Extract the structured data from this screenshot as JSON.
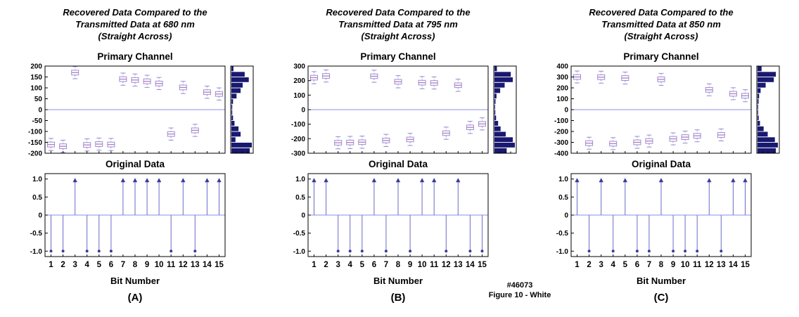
{
  "footnote": "#46073\nFigure 10 - White",
  "colors": {
    "box": "#9a8fd0",
    "median": "#b878c8",
    "zero_line": "#8890e8",
    "stem": "#6a6ac8",
    "marker": "#3a3a9a",
    "hist": "#191970",
    "axis": "#000000"
  },
  "chart_data": [
    {
      "label": "(A)",
      "title": "Recovered Data Compared to the\nTransmitted Data at 680 nm\n(Straight Across)",
      "boxplot": {
        "type": "box",
        "title": "Primary Channel",
        "ylim": [
          -200,
          200
        ],
        "yticks": [
          200,
          150,
          100,
          50,
          0,
          -50,
          -100,
          -150,
          -200
        ],
        "categories": [
          1,
          2,
          3,
          4,
          5,
          6,
          7,
          8,
          9,
          10,
          11,
          12,
          13,
          14,
          15
        ],
        "medians": [
          -160,
          -168,
          170,
          -162,
          -158,
          -160,
          140,
          136,
          130,
          120,
          -112,
          102,
          -95,
          80,
          72
        ],
        "box_half": 11,
        "whisker": 28
      },
      "histogram": {
        "type": "histogram",
        "orientation": "horizontal",
        "bins_top_to_bottom": [
          0.1,
          0.65,
          0.85,
          0.55,
          0.45,
          0.25,
          0.08,
          0.04,
          0.04,
          0.08,
          0.15,
          0.35,
          0.45,
          0.2,
          1.0,
          0.9
        ]
      },
      "stem": {
        "type": "stem",
        "title": "Original Data",
        "ylim": [
          -1.15,
          1.15
        ],
        "yticks": [
          "1.0",
          "0.5",
          "0",
          "-0.5",
          "-1.0"
        ],
        "x": [
          1,
          2,
          3,
          4,
          5,
          6,
          7,
          8,
          9,
          10,
          11,
          12,
          13,
          14,
          15
        ],
        "values": [
          -1,
          -1,
          1,
          -1,
          -1,
          -1,
          1,
          1,
          1,
          1,
          -1,
          1,
          -1,
          1,
          1
        ],
        "xlabel": "Bit Number"
      }
    },
    {
      "label": "(B)",
      "title": "Recovered Data Compared to the\nTransmitted Data at 795 nm\n(Straight Across)",
      "boxplot": {
        "type": "box",
        "title": "Primary Channel",
        "ylim": [
          -300,
          300
        ],
        "yticks": [
          300,
          200,
          100,
          0,
          -100,
          -200,
          -300
        ],
        "categories": [
          1,
          2,
          3,
          4,
          5,
          6,
          7,
          8,
          9,
          10,
          11,
          12,
          13,
          14,
          15
        ],
        "medians": [
          220,
          232,
          -228,
          -226,
          -224,
          230,
          -212,
          192,
          -205,
          186,
          184,
          -162,
          168,
          -122,
          -98
        ],
        "box_half": 16,
        "whisker": 42
      },
      "histogram": {
        "type": "histogram",
        "orientation": "horizontal",
        "bins_top_to_bottom": [
          0.12,
          0.8,
          0.9,
          0.5,
          0.28,
          0.1,
          0.05,
          0.03,
          0.04,
          0.08,
          0.18,
          0.3,
          0.55,
          0.9,
          1.0,
          0.6
        ]
      },
      "stem": {
        "type": "stem",
        "title": "Original Data",
        "ylim": [
          -1.15,
          1.15
        ],
        "yticks": [
          "1.0",
          "0.5",
          "0",
          "-0.5",
          "-1.0"
        ],
        "x": [
          1,
          2,
          3,
          4,
          5,
          6,
          7,
          8,
          9,
          10,
          11,
          12,
          13,
          14,
          15
        ],
        "values": [
          1,
          1,
          -1,
          -1,
          -1,
          1,
          -1,
          1,
          -1,
          1,
          1,
          -1,
          1,
          -1,
          -1
        ],
        "xlabel": "Bit Number"
      }
    },
    {
      "label": "(C)",
      "title": "Recovered Data Compared to the\nTransmitted Data at 850 nm\n(Straight Across)",
      "boxplot": {
        "type": "box",
        "title": "Primary Channel",
        "ylim": [
          -400,
          400
        ],
        "yticks": [
          400,
          300,
          200,
          100,
          0,
          -100,
          -200,
          -300,
          -400
        ],
        "categories": [
          1,
          2,
          3,
          4,
          5,
          6,
          7,
          8,
          9,
          10,
          11,
          12,
          13,
          14,
          15
        ],
        "medians": [
          300,
          -308,
          298,
          -312,
          290,
          -300,
          -288,
          278,
          -268,
          -252,
          -240,
          182,
          -232,
          146,
          128
        ],
        "box_half": 22,
        "whisker": 55
      },
      "histogram": {
        "type": "histogram",
        "orientation": "horizontal",
        "bins_top_to_bottom": [
          0.2,
          0.9,
          0.8,
          0.4,
          0.15,
          0.08,
          0.05,
          0.03,
          0.03,
          0.06,
          0.12,
          0.3,
          0.5,
          0.85,
          1.0,
          0.9
        ]
      },
      "stem": {
        "type": "stem",
        "title": "Original Data",
        "ylim": [
          -1.15,
          1.15
        ],
        "yticks": [
          "1.0",
          "0.5",
          "0",
          "-0.5",
          "-1.0"
        ],
        "x": [
          1,
          2,
          3,
          4,
          5,
          6,
          7,
          8,
          9,
          10,
          11,
          12,
          13,
          14,
          15
        ],
        "values": [
          1,
          -1,
          1,
          -1,
          1,
          -1,
          -1,
          1,
          -1,
          -1,
          -1,
          1,
          -1,
          1,
          1
        ],
        "xlabel": "Bit Number"
      }
    }
  ]
}
